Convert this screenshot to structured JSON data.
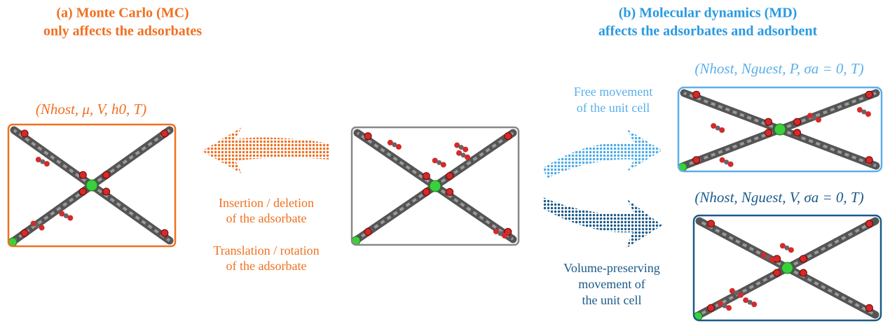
{
  "panel_a": {
    "title": [
      "(a) Monte Carlo (MC)",
      "only affects the adsorbates"
    ],
    "ensemble": "(Nhost, μ, V, h0, T)",
    "steps": [
      [
        "Insertion / deletion",
        "of the adsorbate"
      ],
      [
        "Translation / rotation",
        "of the adsorbate"
      ]
    ]
  },
  "panel_b": {
    "title": [
      "(b) Molecular dynamics (MD)",
      "affects the adsorbates and adsorbent"
    ],
    "npt": {
      "ensemble": "(Nhost, Nguest, P, σa = 0, T)",
      "label": [
        "Free movement",
        "of the unit cell"
      ]
    },
    "nvt": {
      "ensemble": "(Nhost, Nguest, V, σa = 0, T)",
      "label": [
        "Volume-preserving",
        "movement of",
        "the unit cell"
      ]
    }
  }
}
